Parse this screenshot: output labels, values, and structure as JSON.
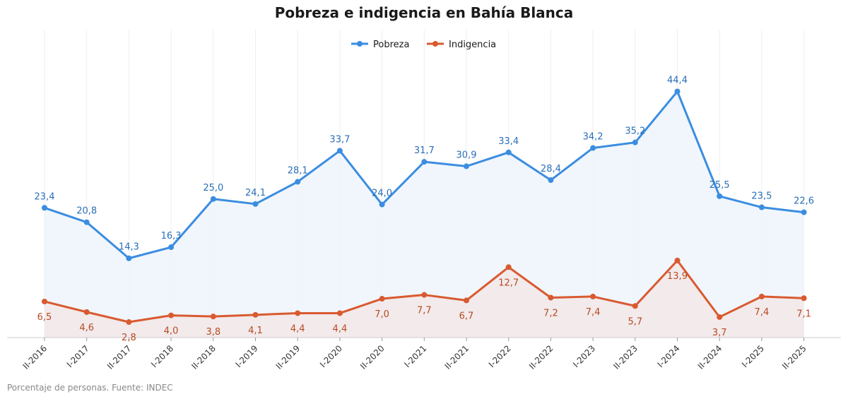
{
  "chart_data": {
    "type": "line",
    "title": "Pobreza e indigencia en Bahía Blanca",
    "xlabel": "",
    "ylabel": "",
    "ylim": [
      0,
      50
    ],
    "grid": "vertical",
    "legend_position": "top-center",
    "categories": [
      "II-2016",
      "I-2017",
      "II-2017",
      "I-2018",
      "II-2018",
      "I-2019",
      "II-2019",
      "I-2020",
      "II-2020",
      "I-2021",
      "II-2021",
      "I-2022",
      "II-2022",
      "I-2023",
      "II-2023",
      "I-2024",
      "II-2024",
      "I-2025",
      "II-2025"
    ],
    "series": [
      {
        "name": "Pobreza",
        "color": "#3b8de0",
        "label_color": "#2a6fb8",
        "fill": "#edf4fc",
        "label_side": "above",
        "values": [
          23.4,
          20.8,
          14.3,
          16.3,
          25.0,
          24.1,
          28.1,
          33.7,
          24.0,
          31.7,
          30.9,
          33.4,
          28.4,
          34.2,
          35.2,
          44.4,
          25.5,
          23.5,
          22.6
        ],
        "labels": [
          "23,4",
          "20,8",
          "14,3",
          "16,3",
          "25,0",
          "24,1",
          "28,1",
          "33,7",
          "24,0",
          "31,7",
          "30,9",
          "33,4",
          "28,4",
          "34,2",
          "35,2",
          "44,4",
          "25,5",
          "23,5",
          "22,6"
        ]
      },
      {
        "name": "Indigencia",
        "color": "#d95a30",
        "label_color": "#b84a22",
        "fill": "#f2e8e8",
        "label_side": "below",
        "values": [
          6.5,
          4.6,
          2.8,
          4.0,
          3.8,
          4.1,
          4.4,
          4.4,
          7.0,
          7.7,
          6.7,
          12.7,
          7.2,
          7.4,
          5.7,
          13.9,
          3.7,
          7.4,
          7.1
        ],
        "labels": [
          "6,5",
          "4,6",
          "2,8",
          "4,0",
          "3,8",
          "4,1",
          "4,4",
          "4,4",
          "7,0",
          "7,7",
          "6,7",
          "12,7",
          "7,2",
          "7,4",
          "5,7",
          "13,9",
          "3,7",
          "7,4",
          "7,1"
        ]
      }
    ],
    "footnote": "Porcentaje de personas. Fuente: INDEC"
  }
}
